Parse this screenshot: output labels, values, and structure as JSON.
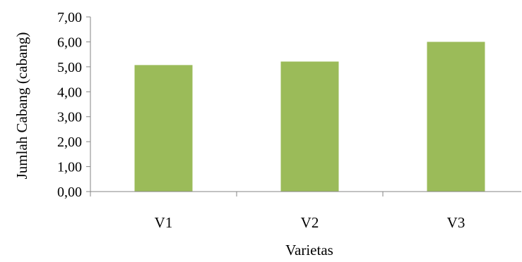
{
  "chart_data": {
    "type": "bar",
    "categories": [
      "V1",
      "V2",
      "V3"
    ],
    "values": [
      5.07,
      5.21,
      6.0
    ],
    "xlabel": "Varietas",
    "ylabel": "Jumlah Cabang (cabang)",
    "ylim": [
      0,
      7
    ],
    "yticks": [
      "0,00",
      "1,00",
      "2,00",
      "3,00",
      "4,00",
      "5,00",
      "6,00",
      "7,00"
    ],
    "grid": false,
    "bar_color": "#9bbb59",
    "axis_color": "#868686"
  }
}
